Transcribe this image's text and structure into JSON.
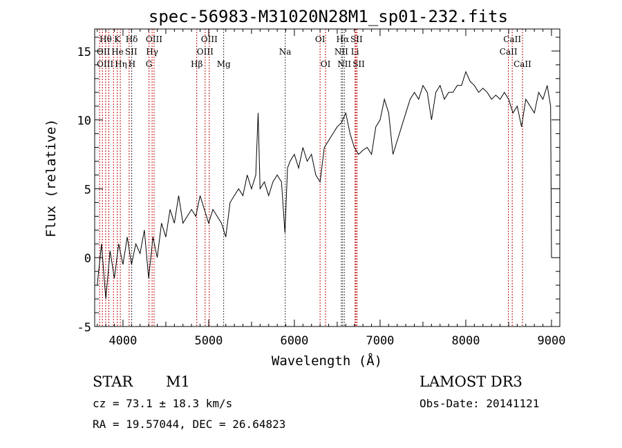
{
  "chart_data": {
    "type": "line",
    "title": "spec-56983-M31020N28M1_sp01-232.fits",
    "xlabel": "Wavelength (Å)",
    "ylabel": "Flux (relative)",
    "xlim": [
      3670,
      9097
    ],
    "ylim": [
      -5,
      16.6
    ],
    "xticks": [
      4000,
      5000,
      6000,
      7000,
      8000,
      9000
    ],
    "yticks": [
      -5,
      0,
      5,
      10,
      15
    ],
    "grid": false,
    "series": [
      {
        "name": "spectrum",
        "x": [
          3700,
          3750,
          3800,
          3850,
          3900,
          3950,
          4000,
          4050,
          4100,
          4150,
          4200,
          4250,
          4300,
          4350,
          4400,
          4450,
          4500,
          4550,
          4600,
          4650,
          4700,
          4750,
          4800,
          4850,
          4900,
          4950,
          5000,
          5050,
          5100,
          5150,
          5200,
          5250,
          5300,
          5350,
          5400,
          5450,
          5500,
          5550,
          5577,
          5600,
          5650,
          5700,
          5750,
          5800,
          5850,
          5890,
          5920,
          5950,
          6000,
          6050,
          6100,
          6150,
          6200,
          6250,
          6300,
          6350,
          6400,
          6450,
          6500,
          6550,
          6600,
          6650,
          6700,
          6750,
          6800,
          6850,
          6900,
          6950,
          7000,
          7050,
          7100,
          7150,
          7200,
          7250,
          7300,
          7350,
          7400,
          7450,
          7500,
          7550,
          7600,
          7650,
          7700,
          7750,
          7800,
          7850,
          7900,
          7950,
          8000,
          8050,
          8100,
          8150,
          8200,
          8250,
          8300,
          8350,
          8400,
          8450,
          8500,
          8550,
          8600,
          8650,
          8700,
          8750,
          8800,
          8850,
          8900,
          8950,
          8990,
          9000
        ],
        "y": [
          -2,
          1,
          -3,
          0.5,
          -1.5,
          1,
          -0.5,
          1.5,
          -0.5,
          1,
          0.3,
          2,
          -1.5,
          1.5,
          0,
          2.5,
          1.5,
          3.5,
          2.5,
          4.5,
          2.5,
          3,
          3.5,
          3,
          4.5,
          3.5,
          2.5,
          3.5,
          3,
          2.5,
          1.5,
          4,
          4.5,
          5,
          4.5,
          6,
          5,
          6,
          10.5,
          5,
          5.5,
          4.5,
          5.5,
          6,
          5.5,
          1.8,
          6.5,
          7,
          7.5,
          6.5,
          8,
          7,
          7.5,
          6,
          5.5,
          8,
          8.5,
          9,
          9.5,
          9.8,
          10.5,
          9,
          8,
          7.5,
          7.8,
          8,
          7.5,
          9.5,
          10,
          11.5,
          10.5,
          7.5,
          8.5,
          9.5,
          10.5,
          11.5,
          12,
          11.5,
          12.5,
          12,
          10,
          12,
          12.5,
          11.5,
          12,
          12,
          12.5,
          12.5,
          13.5,
          12.8,
          12.5,
          12,
          12.3,
          12,
          11.5,
          11.8,
          11.5,
          12,
          11.5,
          10.5,
          11,
          9.5,
          11.5,
          11,
          10.5,
          12,
          11.5,
          12.5,
          11,
          0
        ]
      }
    ],
    "line_markers": [
      {
        "label": "OII",
        "wavelength": 3727,
        "row": 2,
        "color": "#c00000"
      },
      {
        "label": "Hθ",
        "wavelength": 3798,
        "row": 1,
        "color": "#c00000"
      },
      {
        "label": "Hη",
        "wavelength": 3835,
        "row": 3,
        "color": "#c00000"
      },
      {
        "label": "OIII",
        "wavelength": 3760,
        "row": 3,
        "color": "#c00000"
      },
      {
        "label": "He",
        "wavelength": 3889,
        "row": 2,
        "color": "#c00000"
      },
      {
        "label": "K",
        "wavelength": 3934,
        "row": 1,
        "color": "#c00000"
      },
      {
        "label": "H",
        "wavelength": 3969,
        "row": 3,
        "color": "#c00000"
      },
      {
        "label": "SII",
        "wavelength": 4072,
        "row": 2,
        "color": "#c00000"
      },
      {
        "label": "Hδ",
        "wavelength": 4102,
        "row": 1,
        "color": "#333333"
      },
      {
        "label": "G",
        "wavelength": 4304,
        "row": 3,
        "color": "#c00000"
      },
      {
        "label": "Hγ",
        "wavelength": 4340,
        "row": 2,
        "color": "#c00000"
      },
      {
        "label": "OIII",
        "wavelength": 4363,
        "row": 1,
        "color": "#c00000"
      },
      {
        "label": "Hβ",
        "wavelength": 4861,
        "row": 3,
        "color": "#c00000"
      },
      {
        "label": "OIII",
        "wavelength": 4959,
        "row": 2,
        "color": "#c00000"
      },
      {
        "label": "OIII",
        "wavelength": 5007,
        "row": 1,
        "color": "#c00000"
      },
      {
        "label": "Mg",
        "wavelength": 5175,
        "row": 3,
        "color": "#333333"
      },
      {
        "label": "Na",
        "wavelength": 5893,
        "row": 2,
        "color": "#333333"
      },
      {
        "label": "OI",
        "wavelength": 6300,
        "row": 1,
        "color": "#c00000"
      },
      {
        "label": "OI",
        "wavelength": 6364,
        "row": 3,
        "color": "#c00000"
      },
      {
        "label": "NII",
        "wavelength": 6548,
        "row": 2,
        "color": "#333333"
      },
      {
        "label": "Hα",
        "wavelength": 6563,
        "row": 1,
        "color": "#333333"
      },
      {
        "label": "NII",
        "wavelength": 6583,
        "row": 3,
        "color": "#333333"
      },
      {
        "label": "Li",
        "wavelength": 6708,
        "row": 2,
        "color": "#c00000"
      },
      {
        "label": "SII",
        "wavelength": 6717,
        "row": 1,
        "color": "#c00000"
      },
      {
        "label": "SII",
        "wavelength": 6731,
        "row": 3,
        "color": "#c00000"
      },
      {
        "label": "CaII",
        "wavelength": 8498,
        "row": 2,
        "color": "#c00000"
      },
      {
        "label": "CaII",
        "wavelength": 8542,
        "row": 1,
        "color": "#c00000"
      },
      {
        "label": "CaII",
        "wavelength": 8662,
        "row": 3,
        "color": "#c00000"
      }
    ]
  },
  "footer": {
    "object_type": "STAR",
    "subclass": "M1",
    "survey": "LAMOST DR3",
    "cz": "cz = 73.1 ± 18.3 km/s",
    "obs_date": "Obs-Date: 20141121",
    "coords": "RA =  19.57044, DEC =  26.64823"
  }
}
